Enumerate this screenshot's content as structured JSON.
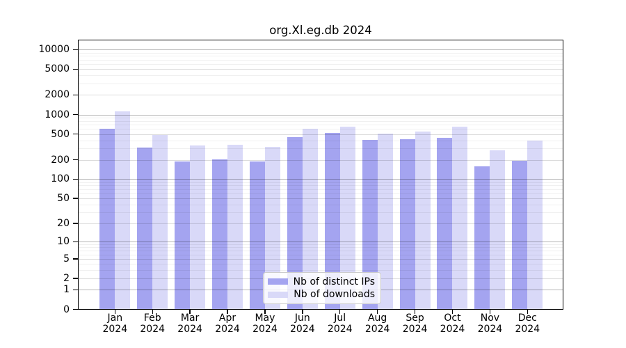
{
  "title": "org.Xl.eg.db 2024",
  "chart_data": {
    "type": "bar",
    "title": "org.Xl.eg.db 2024",
    "categories": [
      "Jan 2024",
      "Feb 2024",
      "Mar 2024",
      "Apr 2024",
      "May 2024",
      "Jun 2024",
      "Jul 2024",
      "Aug 2024",
      "Sep 2024",
      "Oct 2024",
      "Nov 2024",
      "Dec 2024"
    ],
    "series": [
      {
        "name": "Nb of distinct IPs",
        "color": "#a4a4f0",
        "values": [
          610,
          310,
          190,
          205,
          190,
          450,
          520,
          410,
          420,
          440,
          160,
          195
        ]
      },
      {
        "name": "Nb of downloads",
        "color": "#d9d9f8",
        "values": [
          1120,
          480,
          330,
          340,
          320,
          600,
          650,
          510,
          540,
          650,
          280,
          400
        ]
      }
    ],
    "xlabel": "",
    "ylabel": "",
    "yscale": "log10(1+x)",
    "y_ticks": [
      10000,
      5000,
      2000,
      1000,
      500,
      200,
      100,
      50,
      20,
      10,
      5,
      2,
      1,
      0
    ],
    "ylim": [
      0,
      14000
    ],
    "grid": true,
    "grid_on_top_of_bars": true,
    "legend_position": "lower center",
    "colors": {
      "bar_distinct_ips": "#a4a4f0",
      "bar_downloads": "#d9d9f8",
      "grid_major": "#b5b5b5",
      "grid_mid": "#dcdcdc",
      "grid_minor": "#efefef",
      "axis": "#000000",
      "background": "#ffffff"
    }
  }
}
